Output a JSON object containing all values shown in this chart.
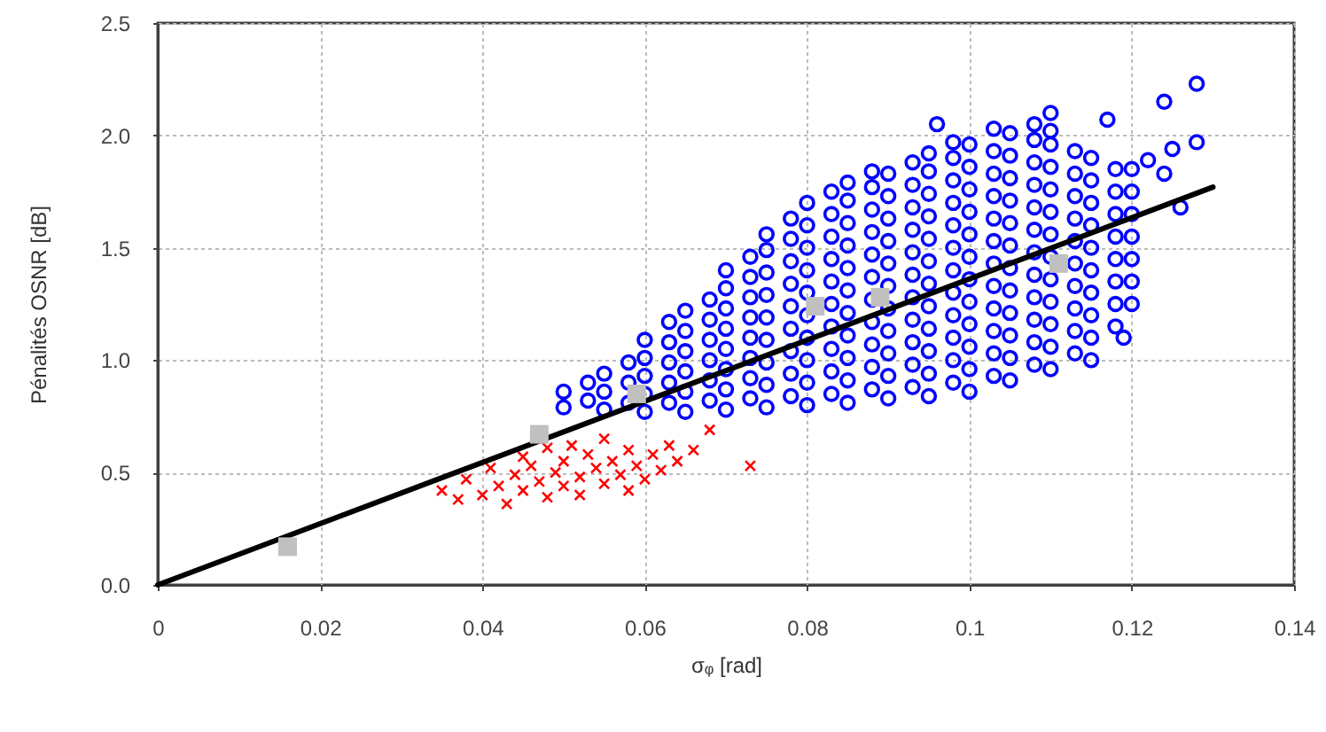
{
  "chart_data": {
    "type": "scatter",
    "xlabel": "σᵩ [rad]",
    "ylabel": "Pénalités OSNR [dB]",
    "xlim": [
      0,
      0.14
    ],
    "ylim": [
      0,
      2.5
    ],
    "xticks": [
      0,
      0.02,
      0.04,
      0.06,
      0.08,
      0.1,
      0.12,
      0.14
    ],
    "yticks": [
      {
        "value": 0,
        "label": "0.0"
      },
      0.5,
      {
        "value": 1,
        "label": "1.0"
      },
      1.5,
      {
        "value": 2,
        "label": "2.0"
      },
      2.5
    ],
    "grid": true,
    "series": [
      {
        "marker": "circle",
        "color": "#0000ff",
        "x": [
          0.05,
          0.05,
          0.055,
          0.055,
          0.055,
          0.06,
          0.06,
          0.06,
          0.06,
          0.06,
          0.065,
          0.065,
          0.065,
          0.065,
          0.065,
          0.065,
          0.07,
          0.07,
          0.07,
          0.07,
          0.07,
          0.07,
          0.07,
          0.07,
          0.075,
          0.075,
          0.075,
          0.075,
          0.075,
          0.075,
          0.075,
          0.075,
          0.075,
          0.08,
          0.08,
          0.08,
          0.08,
          0.08,
          0.08,
          0.08,
          0.08,
          0.08,
          0.08,
          0.085,
          0.085,
          0.085,
          0.085,
          0.085,
          0.085,
          0.085,
          0.085,
          0.085,
          0.085,
          0.085,
          0.09,
          0.09,
          0.09,
          0.09,
          0.09,
          0.09,
          0.09,
          0.09,
          0.09,
          0.09,
          0.09,
          0.095,
          0.095,
          0.095,
          0.095,
          0.095,
          0.095,
          0.095,
          0.095,
          0.095,
          0.095,
          0.095,
          0.095,
          0.1,
          0.1,
          0.1,
          0.1,
          0.1,
          0.1,
          0.1,
          0.1,
          0.1,
          0.1,
          0.1,
          0.1,
          0.105,
          0.105,
          0.105,
          0.105,
          0.105,
          0.105,
          0.105,
          0.105,
          0.105,
          0.105,
          0.105,
          0.105,
          0.11,
          0.11,
          0.11,
          0.11,
          0.11,
          0.11,
          0.11,
          0.11,
          0.11,
          0.11,
          0.11,
          0.11,
          0.115,
          0.115,
          0.115,
          0.115,
          0.115,
          0.115,
          0.115,
          0.115,
          0.115,
          0.115,
          0.12,
          0.12,
          0.12,
          0.12,
          0.12,
          0.12,
          0.12,
          0.128,
          0.124,
          0.128,
          0.125,
          0.122,
          0.124,
          0.126,
          0.119,
          0.117,
          0.096,
          0.11,
          0.053,
          0.053,
          0.058,
          0.058,
          0.058,
          0.063,
          0.063,
          0.063,
          0.063,
          0.063,
          0.068,
          0.068,
          0.068,
          0.068,
          0.068,
          0.068,
          0.073,
          0.073,
          0.073,
          0.073,
          0.073,
          0.073,
          0.073,
          0.073,
          0.078,
          0.078,
          0.078,
          0.078,
          0.078,
          0.078,
          0.078,
          0.078,
          0.078,
          0.083,
          0.083,
          0.083,
          0.083,
          0.083,
          0.083,
          0.083,
          0.083,
          0.083,
          0.083,
          0.088,
          0.088,
          0.088,
          0.088,
          0.088,
          0.088,
          0.088,
          0.088,
          0.088,
          0.088,
          0.088,
          0.093,
          0.093,
          0.093,
          0.093,
          0.093,
          0.093,
          0.093,
          0.093,
          0.093,
          0.093,
          0.093,
          0.098,
          0.098,
          0.098,
          0.098,
          0.098,
          0.098,
          0.098,
          0.098,
          0.098,
          0.098,
          0.098,
          0.098,
          0.103,
          0.103,
          0.103,
          0.103,
          0.103,
          0.103,
          0.103,
          0.103,
          0.103,
          0.103,
          0.103,
          0.103,
          0.108,
          0.108,
          0.108,
          0.108,
          0.108,
          0.108,
          0.108,
          0.108,
          0.108,
          0.108,
          0.108,
          0.108,
          0.113,
          0.113,
          0.113,
          0.113,
          0.113,
          0.113,
          0.113,
          0.113,
          0.113,
          0.113,
          0.118,
          0.118,
          0.118,
          0.118,
          0.118,
          0.118,
          0.118,
          0.118
        ],
        "values": [
          0.79,
          0.86,
          0.78,
          0.86,
          0.94,
          0.77,
          0.85,
          0.93,
          1.01,
          1.09,
          0.77,
          0.86,
          0.95,
          1.04,
          1.13,
          1.22,
          0.78,
          0.87,
          0.96,
          1.05,
          1.14,
          1.23,
          1.32,
          1.4,
          0.79,
          0.89,
          0.99,
          1.09,
          1.19,
          1.29,
          1.39,
          1.49,
          1.56,
          0.8,
          0.9,
          1.0,
          1.1,
          1.2,
          1.3,
          1.4,
          1.5,
          1.6,
          1.7,
          0.81,
          0.91,
          1.01,
          1.11,
          1.21,
          1.31,
          1.41,
          1.51,
          1.61,
          1.71,
          1.79,
          0.83,
          0.93,
          1.03,
          1.13,
          1.23,
          1.33,
          1.43,
          1.53,
          1.63,
          1.73,
          1.83,
          0.84,
          0.94,
          1.04,
          1.14,
          1.24,
          1.34,
          1.44,
          1.54,
          1.64,
          1.74,
          1.84,
          1.92,
          0.86,
          0.96,
          1.06,
          1.16,
          1.26,
          1.36,
          1.46,
          1.56,
          1.66,
          1.76,
          1.86,
          1.96,
          0.91,
          1.01,
          1.11,
          1.21,
          1.31,
          1.41,
          1.51,
          1.61,
          1.71,
          1.81,
          1.91,
          2.01,
          0.96,
          1.06,
          1.16,
          1.26,
          1.36,
          1.46,
          1.56,
          1.66,
          1.76,
          1.86,
          1.96,
          2.02,
          1.0,
          1.1,
          1.2,
          1.3,
          1.4,
          1.5,
          1.6,
          1.7,
          1.8,
          1.9,
          1.25,
          1.35,
          1.45,
          1.55,
          1.65,
          1.75,
          1.85,
          2.23,
          2.15,
          1.97,
          1.94,
          1.89,
          1.83,
          1.68,
          1.1,
          2.07,
          2.05,
          2.1,
          0.82,
          0.9,
          0.81,
          0.9,
          0.99,
          0.81,
          0.9,
          0.99,
          1.08,
          1.17,
          0.82,
          0.91,
          1.0,
          1.09,
          1.18,
          1.27,
          0.83,
          0.92,
          1.01,
          1.1,
          1.19,
          1.28,
          1.37,
          1.46,
          0.84,
          0.94,
          1.04,
          1.14,
          1.24,
          1.34,
          1.44,
          1.54,
          1.63,
          0.85,
          0.95,
          1.05,
          1.15,
          1.25,
          1.35,
          1.45,
          1.55,
          1.65,
          1.75,
          0.87,
          0.97,
          1.07,
          1.17,
          1.27,
          1.37,
          1.47,
          1.57,
          1.67,
          1.77,
          1.84,
          0.88,
          0.98,
          1.08,
          1.18,
          1.28,
          1.38,
          1.48,
          1.58,
          1.68,
          1.78,
          1.88,
          0.9,
          1.0,
          1.1,
          1.2,
          1.3,
          1.4,
          1.5,
          1.6,
          1.7,
          1.8,
          1.9,
          1.97,
          0.93,
          1.03,
          1.13,
          1.23,
          1.33,
          1.43,
          1.53,
          1.63,
          1.73,
          1.83,
          1.93,
          2.03,
          0.98,
          1.08,
          1.18,
          1.28,
          1.38,
          1.48,
          1.58,
          1.68,
          1.78,
          1.88,
          1.98,
          2.05,
          1.03,
          1.13,
          1.23,
          1.33,
          1.43,
          1.53,
          1.63,
          1.73,
          1.83,
          1.93,
          1.15,
          1.25,
          1.35,
          1.45,
          1.55,
          1.65,
          1.75,
          1.85
        ]
      },
      {
        "marker": "cross",
        "color": "#ff0000",
        "x": [
          0.035,
          0.037,
          0.038,
          0.04,
          0.041,
          0.042,
          0.043,
          0.044,
          0.045,
          0.045,
          0.046,
          0.047,
          0.048,
          0.048,
          0.049,
          0.05,
          0.05,
          0.051,
          0.052,
          0.052,
          0.053,
          0.054,
          0.055,
          0.055,
          0.056,
          0.057,
          0.058,
          0.058,
          0.059,
          0.06,
          0.061,
          0.062,
          0.063,
          0.064,
          0.066,
          0.073,
          0.068
        ],
        "values": [
          0.42,
          0.38,
          0.47,
          0.4,
          0.52,
          0.44,
          0.36,
          0.49,
          0.57,
          0.42,
          0.53,
          0.46,
          0.61,
          0.39,
          0.5,
          0.55,
          0.44,
          0.62,
          0.48,
          0.4,
          0.58,
          0.52,
          0.45,
          0.65,
          0.55,
          0.49,
          0.6,
          0.42,
          0.53,
          0.47,
          0.58,
          0.51,
          0.62,
          0.55,
          0.6,
          0.53,
          0.69
        ]
      },
      {
        "type": "line",
        "marker": "none",
        "line_style": "solid",
        "color": "#000000",
        "x": [
          0,
          0.13
        ],
        "values": [
          0,
          1.77
        ]
      },
      {
        "marker": "square",
        "color": "#c0c0c0",
        "x": [
          0.016,
          0.047,
          0.059,
          0.081,
          0.089,
          0.111
        ],
        "values": [
          0.17,
          0.67,
          0.85,
          1.24,
          1.28,
          1.43
        ]
      }
    ]
  }
}
